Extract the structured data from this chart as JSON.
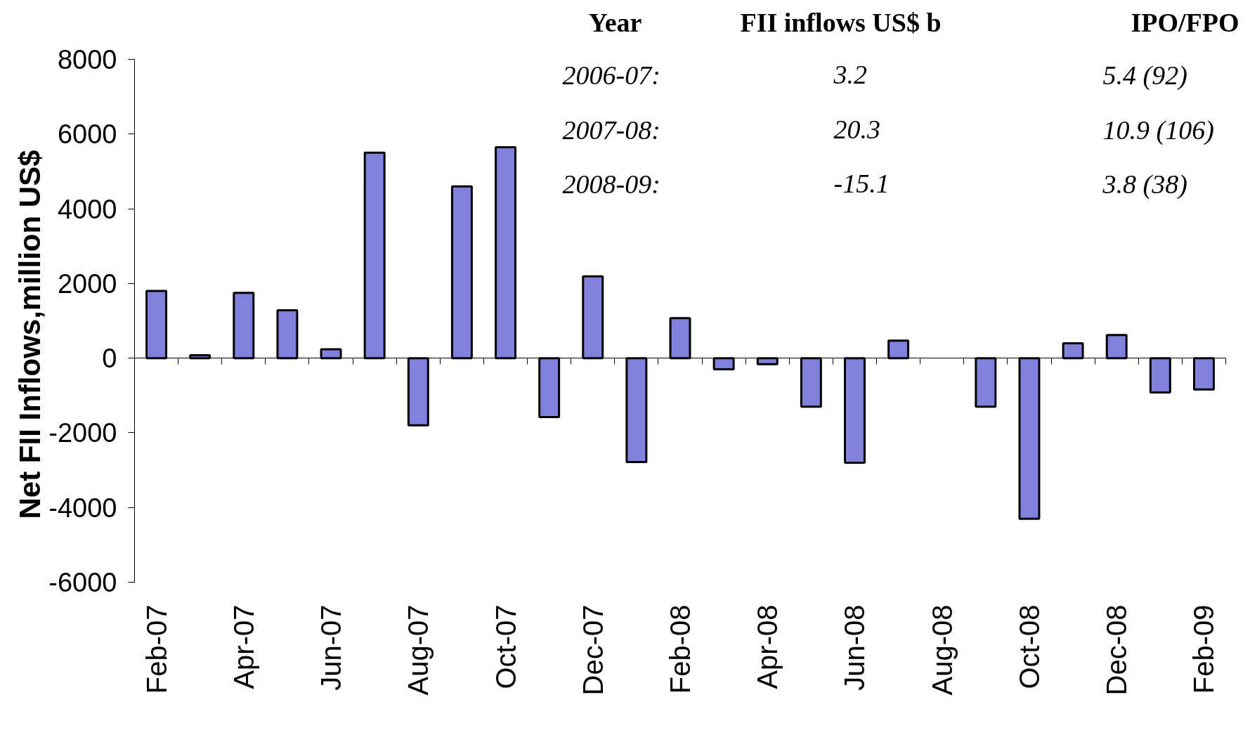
{
  "chart_data": {
    "type": "bar",
    "ylabel": "Net FII Inflows,million US$",
    "categories": [
      "Feb-07",
      null,
      "Apr-07",
      null,
      "Jun-07",
      null,
      "Aug-07",
      null,
      "Oct-07",
      null,
      "Dec-07",
      null,
      "Feb-08",
      null,
      "Apr-08",
      null,
      "Jun-08",
      null,
      "Aug-08",
      null,
      "Oct-08",
      null,
      "Dec-08",
      null,
      "Feb-09"
    ],
    "values": [
      1800,
      80,
      1750,
      1280,
      240,
      5500,
      -1800,
      4600,
      5650,
      -1580,
      2190,
      -2780,
      1070,
      -300,
      -160,
      -1300,
      -2800,
      470,
      null,
      -1300,
      -4300,
      400,
      620,
      -920,
      -840
    ],
    "color": "#8080dd",
    "ylim": [
      -6000,
      8000
    ],
    "yticks": [
      -6000,
      -4000,
      -2000,
      0,
      2000,
      4000,
      6000,
      8000
    ],
    "annotations": [
      "Year",
      "FII inflows US$ b",
      "IPO/FPO",
      "2006-07:",
      "3.2",
      "5.4 (92)",
      "2007-08:",
      "20.3",
      "10.9 (106)",
      "2008-09:",
      "-15.1",
      "3.8 (38)"
    ]
  }
}
